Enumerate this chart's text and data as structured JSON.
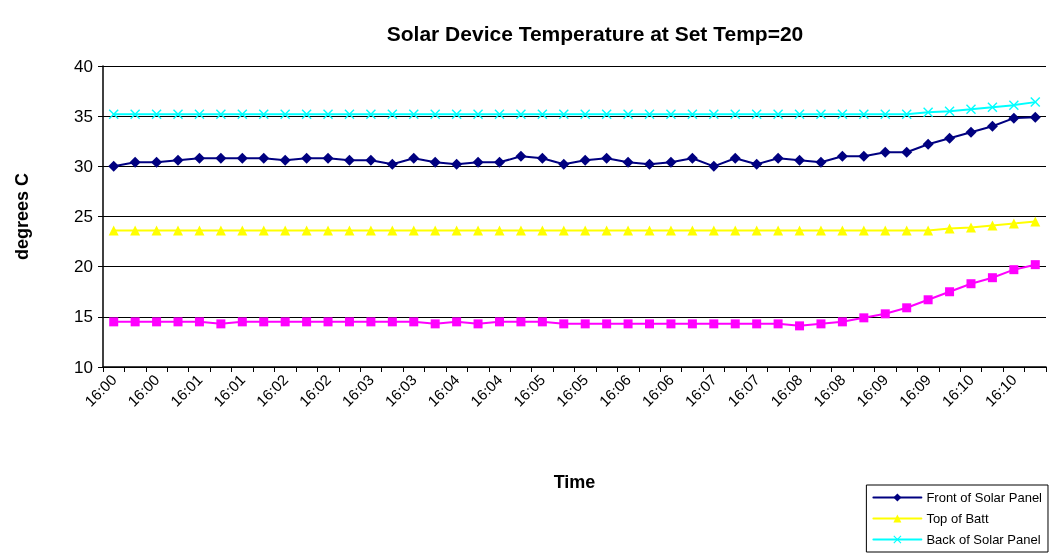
{
  "chart_data": {
    "type": "line",
    "title": "Solar Device Temperature at Set Temp=20",
    "xlabel": "Time",
    "ylabel": "degrees C",
    "categories": [
      "16:00",
      null,
      "16:00",
      null,
      "16:01",
      null,
      "16:01",
      null,
      "16:02",
      null,
      "16:02",
      null,
      "16:03",
      null,
      "16:03",
      null,
      "16:04",
      null,
      "16:04",
      null,
      "16:05",
      null,
      "16:05",
      null,
      "16:06",
      null,
      "16:06",
      null,
      "16:07",
      null,
      "16:07",
      null,
      "16:08",
      null,
      "16:08",
      null,
      "16:09",
      null,
      "16:09",
      null,
      "16:10",
      null,
      "16:10",
      null
    ],
    "series": [
      {
        "name": "Front of Solar Panel",
        "color": "#000080",
        "marker": "diamond",
        "values": [
          30.0,
          30.4,
          30.4,
          30.6,
          30.8,
          30.8,
          30.8,
          30.8,
          30.6,
          30.8,
          30.8,
          30.6,
          30.6,
          30.2,
          30.8,
          30.4,
          30.2,
          30.4,
          30.4,
          31.0,
          30.8,
          30.2,
          30.6,
          30.8,
          30.4,
          30.2,
          30.4,
          30.8,
          30.0,
          30.8,
          30.2,
          30.8,
          30.6,
          30.4,
          31.0,
          31.0,
          31.4,
          31.4,
          32.2,
          32.8,
          33.4,
          34.0,
          34.8,
          34.9
        ]
      },
      {
        "color": "#ff00ff",
        "marker": "square",
        "values": [
          14.5,
          14.5,
          14.5,
          14.5,
          14.5,
          14.3,
          14.5,
          14.5,
          14.5,
          14.5,
          14.5,
          14.5,
          14.5,
          14.5,
          14.5,
          14.3,
          14.5,
          14.3,
          14.5,
          14.5,
          14.5,
          14.3,
          14.3,
          14.3,
          14.3,
          14.3,
          14.3,
          14.3,
          14.3,
          14.3,
          14.3,
          14.3,
          14.1,
          14.3,
          14.5,
          14.9,
          15.3,
          15.9,
          16.7,
          17.5,
          18.3,
          18.9,
          19.7,
          20.2
        ]
      },
      {
        "name": "Top of Batt",
        "color": "#ffff00",
        "marker": "triangle",
        "values": [
          23.6,
          23.6,
          23.6,
          23.6,
          23.6,
          23.6,
          23.6,
          23.6,
          23.6,
          23.6,
          23.6,
          23.6,
          23.6,
          23.6,
          23.6,
          23.6,
          23.6,
          23.6,
          23.6,
          23.6,
          23.6,
          23.6,
          23.6,
          23.6,
          23.6,
          23.6,
          23.6,
          23.6,
          23.6,
          23.6,
          23.6,
          23.6,
          23.6,
          23.6,
          23.6,
          23.6,
          23.6,
          23.6,
          23.6,
          23.8,
          23.9,
          24.1,
          24.3,
          24.5
        ]
      },
      {
        "name": "Back of Solar Panel",
        "color": "#00ffff",
        "marker": "cross",
        "values": [
          35.2,
          35.2,
          35.2,
          35.2,
          35.2,
          35.2,
          35.2,
          35.2,
          35.2,
          35.2,
          35.2,
          35.2,
          35.2,
          35.2,
          35.2,
          35.2,
          35.2,
          35.2,
          35.2,
          35.2,
          35.2,
          35.2,
          35.2,
          35.2,
          35.2,
          35.2,
          35.2,
          35.2,
          35.2,
          35.2,
          35.2,
          35.2,
          35.2,
          35.2,
          35.2,
          35.2,
          35.2,
          35.2,
          35.4,
          35.5,
          35.7,
          35.9,
          36.1,
          36.4
        ]
      }
    ],
    "ylim": [
      10,
      40
    ],
    "yticks": [
      10,
      15,
      20,
      25,
      30,
      35,
      40
    ],
    "grid": "y",
    "legend": "bottom right"
  }
}
